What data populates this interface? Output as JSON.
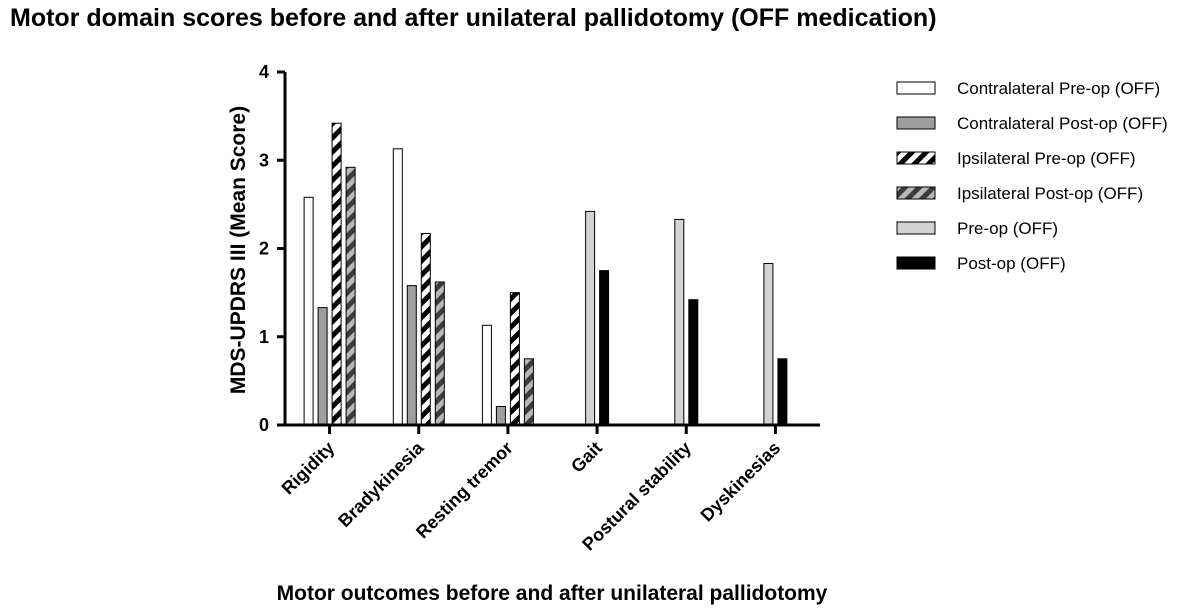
{
  "chart_data": {
    "type": "bar",
    "title": "Motor domain scores before and after unilateral pallidotomy (OFF medication)",
    "xlabel": "Motor outcomes before and after unilateral pallidotomy",
    "ylabel": "MDS-UPDRS III (Mean Score)",
    "ylim": [
      0,
      4
    ],
    "yticks": [
      "0",
      "1",
      "2",
      "3",
      "4"
    ],
    "categories": [
      "Rigidity",
      "Bradykinesia",
      "Resting tremor",
      "Gait",
      "Postural stability",
      "Dyskinesias"
    ],
    "series": [
      {
        "name": "Contralateral Pre-op (OFF)",
        "fill": "#ffffff",
        "pattern": "none",
        "values": [
          2.58,
          3.13,
          1.13,
          null,
          null,
          null
        ]
      },
      {
        "name": "Contralateral Post-op (OFF)",
        "fill": "#9e9e9e",
        "pattern": "none",
        "values": [
          1.33,
          1.58,
          0.21,
          null,
          null,
          null
        ]
      },
      {
        "name": "Ipsilateral Pre-op (OFF)",
        "fill": "#ffffff",
        "stripe": "#000000",
        "pattern": "diagonal",
        "values": [
          3.42,
          2.17,
          1.5,
          null,
          null,
          null
        ]
      },
      {
        "name": "Ipsilateral Post-op (OFF)",
        "fill": "#b8b8b8",
        "stripe": "#3c3c3c",
        "pattern": "diagonal",
        "values": [
          2.92,
          1.62,
          0.75,
          null,
          null,
          null
        ]
      },
      {
        "name": "Pre-op (OFF)",
        "fill": "#d3d3d3",
        "pattern": "none",
        "values": [
          null,
          null,
          null,
          2.42,
          2.33,
          1.83
        ]
      },
      {
        "name": "Post-op (OFF)",
        "fill": "#000000",
        "pattern": "none",
        "values": [
          null,
          null,
          null,
          1.75,
          1.42,
          0.75
        ]
      }
    ]
  }
}
